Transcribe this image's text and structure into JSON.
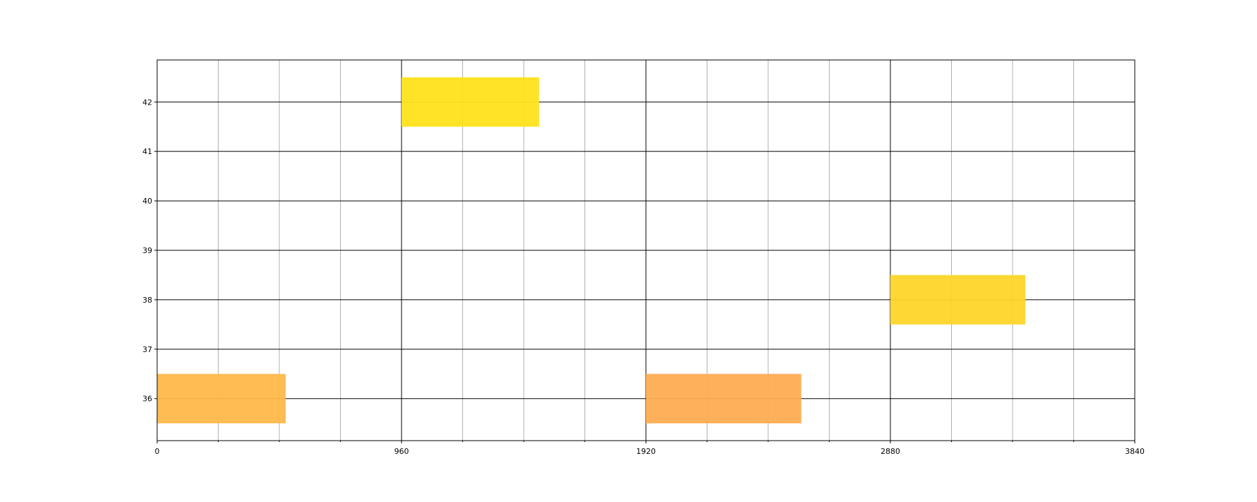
{
  "chart_data": {
    "type": "bar",
    "orientation": "horizontal",
    "title": "",
    "xlabel": "",
    "ylabel": "",
    "xlim": [
      0,
      3840
    ],
    "ylim": [
      35.15,
      42.85
    ],
    "x_ticks": [
      0,
      960,
      1920,
      2880,
      3840
    ],
    "x_minor_ticks": [
      240,
      480,
      720,
      1200,
      1440,
      1680,
      2160,
      2400,
      2640,
      3120,
      3360,
      3600
    ],
    "x_tick_labels": [
      "0",
      "960",
      "1920",
      "2880",
      "3840"
    ],
    "y_ticks": [
      36,
      37,
      38,
      39,
      40,
      41,
      42
    ],
    "y_tick_labels": [
      "36",
      "37",
      "38",
      "39",
      "40",
      "41",
      "42"
    ],
    "grid": true,
    "bar_height": 1.0,
    "bars": [
      {
        "y": 42,
        "start": 960,
        "end": 1500,
        "color": "#ffe11a"
      },
      {
        "y": 38,
        "start": 2880,
        "end": 3410,
        "color": "#ffd52a"
      },
      {
        "y": 36,
        "start": 0,
        "end": 505,
        "color": "#ffb84a"
      },
      {
        "y": 36,
        "start": 1920,
        "end": 2530,
        "color": "#ffac52"
      }
    ]
  }
}
